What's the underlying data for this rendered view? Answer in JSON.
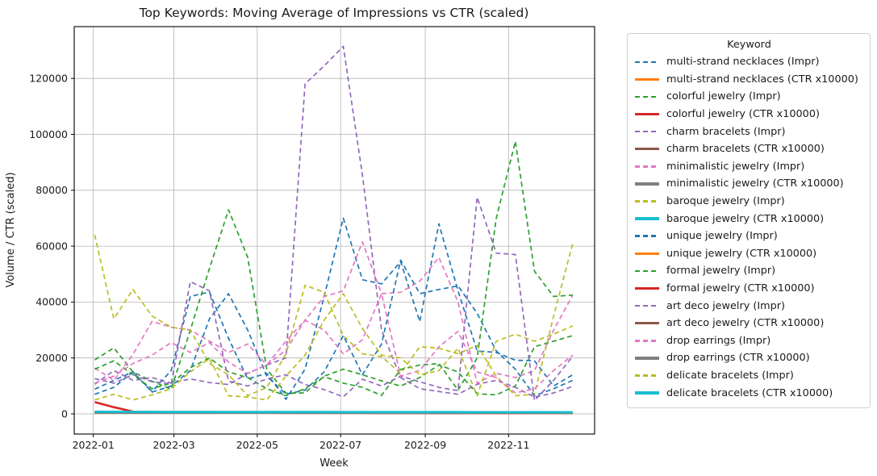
{
  "figure": {
    "title": "Top Keywords: Moving Average of Impressions vs CTR (scaled)",
    "xlabel": "Week",
    "ylabel": "Volume / CTR (scaled)",
    "legend_title": "Keyword",
    "background_color": "#ffffff",
    "grid_color": "#b3b3b3",
    "spine_color": "#000000"
  },
  "chart_data": {
    "type": "line",
    "title": "Top Keywords: Moving Average of Impressions vs CTR (scaled)",
    "xlabel": "Week",
    "ylabel": "Volume / CTR (scaled)",
    "grid": true,
    "legend": {
      "title": "Keyword",
      "position": "right-outside"
    },
    "x_tick_labels": [
      "2022-01",
      "2022-03",
      "2022-05",
      "2022-07",
      "2022-09",
      "2022-11"
    ],
    "x_tick_dates": [
      "2022-01-01",
      "2022-03-01",
      "2022-05-01",
      "2022-07-01",
      "2022-09-01",
      "2022-11-01"
    ],
    "y_ticks": [
      0,
      20000,
      40000,
      60000,
      80000,
      100000,
      120000
    ],
    "ylim": [
      -7200,
      138700
    ],
    "xlim_dates": [
      "2021-12-18",
      "2023-01-03"
    ],
    "x": [
      "2022-01-02",
      "2022-01-16",
      "2022-01-30",
      "2022-02-13",
      "2022-02-27",
      "2022-03-13",
      "2022-03-27",
      "2022-04-10",
      "2022-04-24",
      "2022-05-08",
      "2022-05-22",
      "2022-06-05",
      "2022-06-19",
      "2022-07-03",
      "2022-07-17",
      "2022-07-31",
      "2022-08-14",
      "2022-08-28",
      "2022-09-11",
      "2022-09-25",
      "2022-10-09",
      "2022-10-23",
      "2022-11-06",
      "2022-11-20",
      "2022-12-04",
      "2022-12-18"
    ],
    "series": [
      {
        "name": "multi-strand necklaces (Impr)",
        "color": "#1f77b4",
        "style": "dashed",
        "width": 1.7,
        "values": [
          8800,
          12000,
          15000,
          8000,
          15500,
          42000,
          43600,
          27000,
          12500,
          14500,
          5200,
          16000,
          42000,
          70000,
          48000,
          46500,
          54500,
          33000,
          68000,
          44000,
          22500,
          22000,
          19200,
          19000,
          10000,
          14000
        ]
      },
      {
        "name": "multi-strand necklaces (CTR x10000)",
        "color": "#ff7f0e",
        "style": "solid",
        "width": 2.6,
        "values": [
          650,
          620,
          600,
          580,
          560,
          550,
          540,
          530,
          520,
          510,
          500,
          500,
          490,
          490,
          480,
          480,
          470,
          470,
          460,
          460,
          450,
          450,
          440,
          440,
          430,
          430
        ]
      },
      {
        "name": "colorful jewelry (Impr)",
        "color": "#2ca02c",
        "style": "dashed",
        "width": 1.7,
        "values": [
          19300,
          23600,
          15000,
          11700,
          8800,
          30000,
          52000,
          73000,
          56000,
          16000,
          7400,
          7500,
          13500,
          16000,
          14000,
          11800,
          10000,
          13000,
          17500,
          15000,
          7200,
          6800,
          10000,
          24000,
          26000,
          28000
        ]
      },
      {
        "name": "colorful jewelry (CTR x10000)",
        "color": "#d62728",
        "style": "solid",
        "width": 2.6,
        "values": [
          4200,
          2400,
          800,
          500,
          450,
          420,
          400,
          390,
          380,
          370,
          360,
          350,
          350,
          340,
          340,
          330,
          330,
          320,
          320,
          310,
          310,
          300,
          300,
          300,
          290,
          290
        ]
      },
      {
        "name": "charm bracelets (Impr)",
        "color": "#9467bd",
        "style": "dashed",
        "width": 1.7,
        "values": [
          10600,
          15500,
          12000,
          13000,
          11000,
          12500,
          11200,
          10500,
          14500,
          17500,
          20000,
          118000,
          124500,
          131500,
          85500,
          30000,
          13000,
          9000,
          8000,
          7000,
          10600,
          12000,
          9500,
          6000,
          7500,
          9800
        ]
      },
      {
        "name": "charm bracelets (CTR x10000)",
        "color": "#8c564b",
        "style": "solid",
        "width": 2.6,
        "values": [
          550,
          540,
          530,
          520,
          510,
          500,
          500,
          490,
          490,
          480,
          480,
          470,
          470,
          460,
          460,
          450,
          450,
          450,
          440,
          440,
          430,
          430,
          430,
          420,
          420,
          420
        ]
      },
      {
        "name": "minimalistic jewelry (Impr)",
        "color": "#e377c2",
        "style": "dashed",
        "width": 1.7,
        "values": [
          16400,
          12000,
          21300,
          33100,
          31000,
          30000,
          26000,
          22000,
          25000,
          17500,
          22800,
          33500,
          42000,
          44000,
          61500,
          43000,
          43500,
          47500,
          56000,
          40000,
          11000,
          14500,
          13000,
          15500,
          30000,
          42500
        ]
      },
      {
        "name": "minimalistic jewelry (CTR x10000)",
        "color": "#7f7f7f",
        "style": "solid",
        "width": 2.6,
        "values": [
          480,
          470,
          460,
          450,
          450,
          440,
          440,
          430,
          430,
          420,
          420,
          410,
          410,
          400,
          400,
          400,
          390,
          390,
          390,
          380,
          380,
          380,
          370,
          370,
          370,
          360
        ]
      },
      {
        "name": "baroque jewelry (Impr)",
        "color": "#bcbd22",
        "style": "dashed",
        "width": 1.7,
        "values": [
          64000,
          34000,
          44500,
          35000,
          31000,
          30000,
          18000,
          14000,
          6500,
          9500,
          21500,
          46000,
          43500,
          28000,
          21500,
          20500,
          14500,
          24000,
          23500,
          21500,
          24500,
          13500,
          6500,
          7000,
          35000,
          61000
        ]
      },
      {
        "name": "baroque jewelry (CTR x10000)",
        "color": "#17becf",
        "style": "solid",
        "width": 2.6,
        "values": [
          800,
          780,
          760,
          740,
          730,
          720,
          710,
          700,
          700,
          690,
          690,
          680,
          680,
          670,
          670,
          660,
          660,
          650,
          650,
          650,
          640,
          640,
          630,
          630,
          630,
          620
        ]
      },
      {
        "name": "unique jewelry (Impr)",
        "color": "#1f77b4",
        "style": "dashed",
        "width": 1.7,
        "values": [
          7000,
          9500,
          15000,
          7800,
          10000,
          15500,
          34000,
          43000,
          30000,
          13500,
          7000,
          8500,
          15000,
          28000,
          14000,
          25000,
          55000,
          43000,
          44500,
          45800,
          36000,
          22500,
          16000,
          6500,
          9000,
          12000
        ]
      },
      {
        "name": "unique jewelry (CTR x10000)",
        "color": "#ff7f0e",
        "style": "solid",
        "width": 2.6,
        "values": [
          600,
          590,
          580,
          570,
          560,
          550,
          545,
          540,
          535,
          530,
          525,
          520,
          515,
          510,
          505,
          500,
          495,
          490,
          485,
          480,
          475,
          470,
          465,
          460,
          455,
          450
        ]
      },
      {
        "name": "formal jewelry (Impr)",
        "color": "#2ca02c",
        "style": "dashed",
        "width": 1.7,
        "values": [
          16000,
          19000,
          14000,
          9000,
          11000,
          16500,
          20000,
          15000,
          13000,
          9000,
          6500,
          9000,
          13300,
          11000,
          9500,
          6600,
          15900,
          17500,
          18000,
          8500,
          20000,
          70000,
          97500,
          51000,
          42000,
          42500
        ]
      },
      {
        "name": "formal jewelry (CTR x10000)",
        "color": "#d62728",
        "style": "solid",
        "width": 2.6,
        "values": [
          450,
          440,
          430,
          420,
          415,
          410,
          405,
          400,
          395,
          390,
          385,
          380,
          375,
          370,
          365,
          360,
          355,
          350,
          345,
          340,
          335,
          330,
          325,
          320,
          315,
          310
        ]
      },
      {
        "name": "art deco jewelry (Impr)",
        "color": "#9467bd",
        "style": "dashed",
        "width": 1.7,
        "values": [
          12600,
          11000,
          14000,
          11500,
          10800,
          47300,
          44000,
          11700,
          10000,
          12500,
          14000,
          10500,
          8700,
          6100,
          12400,
          10000,
          13500,
          11500,
          9500,
          8300,
          77500,
          57500,
          57000,
          4800,
          12000,
          20600
        ]
      },
      {
        "name": "art deco jewelry (CTR x10000)",
        "color": "#8c564b",
        "style": "solid",
        "width": 2.6,
        "values": [
          430,
          425,
          420,
          415,
          410,
          405,
          400,
          395,
          390,
          385,
          380,
          378,
          375,
          372,
          370,
          368,
          365,
          362,
          360,
          358,
          355,
          352,
          350,
          348,
          345,
          342
        ]
      },
      {
        "name": "drop earrings (Impr)",
        "color": "#e377c2",
        "style": "dashed",
        "width": 1.7,
        "values": [
          11000,
          13500,
          18000,
          21000,
          25500,
          22000,
          25500,
          18500,
          14500,
          17500,
          26000,
          33500,
          30000,
          21500,
          26500,
          43000,
          13500,
          15500,
          24000,
          29500,
          15000,
          13000,
          7500,
          9000,
          15500,
          21000
        ]
      },
      {
        "name": "drop earrings (CTR x10000)",
        "color": "#7f7f7f",
        "style": "solid",
        "width": 2.6,
        "values": [
          400,
          395,
          390,
          385,
          380,
          375,
          372,
          370,
          368,
          365,
          362,
          360,
          358,
          355,
          352,
          350,
          348,
          345,
          342,
          340,
          338,
          335,
          332,
          330,
          328,
          325
        ]
      },
      {
        "name": "delicate bracelets (Impr)",
        "color": "#bcbd22",
        "style": "dashed",
        "width": 1.7,
        "values": [
          5000,
          7000,
          5000,
          6800,
          9000,
          15000,
          19800,
          6500,
          6000,
          5000,
          13500,
          21000,
          33500,
          43000,
          30500,
          21000,
          20000,
          14000,
          15500,
          23500,
          6500,
          26000,
          28500,
          26000,
          28500,
          31500
        ]
      },
      {
        "name": "delicate bracelets (CTR x10000)",
        "color": "#17becf",
        "style": "solid",
        "width": 2.6,
        "values": [
          700,
          690,
          680,
          670,
          660,
          655,
          650,
          645,
          640,
          635,
          630,
          625,
          620,
          615,
          610,
          605,
          600,
          595,
          590,
          585,
          580,
          575,
          570,
          565,
          560,
          555
        ]
      }
    ]
  }
}
